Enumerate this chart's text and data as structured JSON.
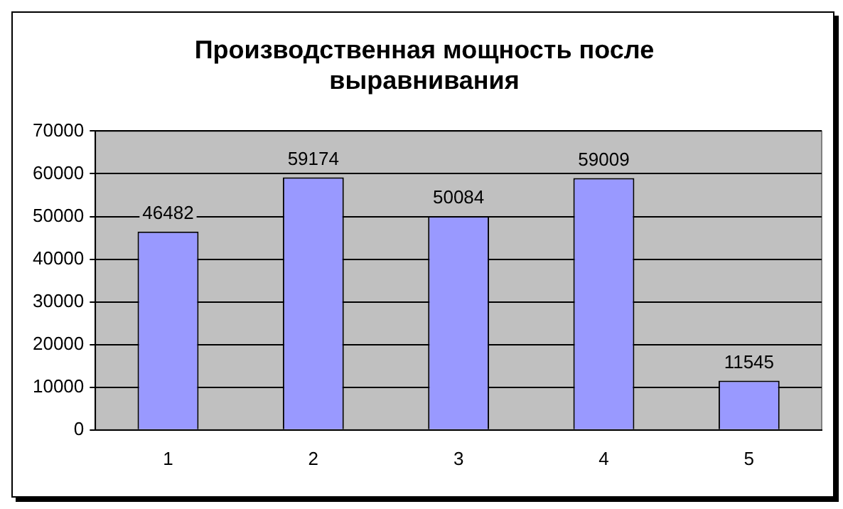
{
  "chart_data": {
    "type": "bar",
    "title": "Производственная мощность после выравнивания",
    "categories": [
      "1",
      "2",
      "3",
      "4",
      "5"
    ],
    "values": [
      46482,
      59174,
      50084,
      59009,
      11545
    ],
    "color": "#9999ff",
    "ylim": [
      0,
      70000
    ],
    "yticks": [
      0,
      10000,
      20000,
      30000,
      40000,
      50000,
      60000,
      70000
    ],
    "grid": "y",
    "data_labels": true,
    "legend": false
  }
}
